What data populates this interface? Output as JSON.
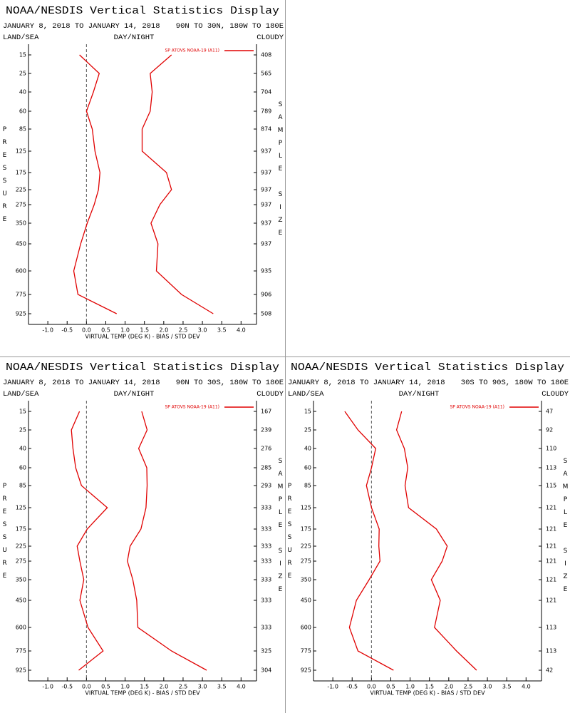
{
  "chart_data": [
    {
      "type": "line",
      "title": "NOAA/NESDIS Vertical Statistics Display",
      "date_range": "JANUARY 8, 2018 TO JANUARY 14, 2018",
      "region": "90N TO 30N, 180W TO 180E",
      "land_sea": "LAND/SEA",
      "day_night": "DAY/NIGHT",
      "cloudy": "CLOUDY",
      "ylabel": "PRESSURE",
      "y2label": "SAMPLE SIZE",
      "xlabel": "VIRTUAL TEMP (DEG K) - BIAS / STD DEV",
      "levels": [
        15,
        25,
        40,
        60,
        85,
        125,
        175,
        225,
        275,
        350,
        450,
        600,
        775,
        925
      ],
      "sample_sizes": [
        408,
        565,
        704,
        789,
        874,
        937,
        937,
        937,
        937,
        937,
        937,
        935,
        906,
        508
      ],
      "series": [
        {
          "name": "SP ATOVS NOAA-19 (A11)",
          "color": "#e00000",
          "bias": [
            -0.18,
            0.33,
            0.18,
            0.0,
            0.15,
            0.22,
            0.35,
            0.31,
            0.2,
            0.02,
            -0.15,
            -0.33,
            -0.22,
            0.78
          ],
          "std_dev": [
            2.2,
            1.65,
            1.7,
            1.65,
            1.44,
            1.44,
            2.07,
            2.2,
            1.9,
            1.67,
            1.85,
            1.81,
            2.46,
            3.28
          ]
        }
      ],
      "xlim": [
        -1.5,
        4.4
      ],
      "xticks": [
        {
          "value": -1,
          "label": "-1.0"
        },
        -0.5,
        {
          "value": 0,
          "label": "0.0"
        },
        0.5,
        {
          "value": 1,
          "label": "1.0"
        },
        1.5,
        {
          "value": 2,
          "label": "2.0"
        },
        2.5,
        {
          "value": 3,
          "label": "3.0"
        },
        3.5,
        {
          "value": 4,
          "label": "4.0"
        }
      ],
      "reference_x": 0
    },
    {
      "type": "line",
      "title": "NOAA/NESDIS Vertical Statistics Display",
      "date_range": "JANUARY 8, 2018 TO JANUARY 14, 2018",
      "region": "90N TO 30S, 180W TO 180E",
      "land_sea": "LAND/SEA",
      "day_night": "DAY/NIGHT",
      "cloudy": "CLOUDY",
      "ylabel": "PRESSURE",
      "y2label": "SAMPLE SIZE",
      "xlabel": "VIRTUAL TEMP (DEG K) - BIAS / STD DEV",
      "levels": [
        15,
        25,
        40,
        60,
        85,
        125,
        175,
        225,
        275,
        350,
        450,
        600,
        775,
        925
      ],
      "sample_sizes": [
        167,
        239,
        276,
        285,
        293,
        333,
        333,
        333,
        333,
        333,
        333,
        333,
        325,
        304
      ],
      "series": [
        {
          "name": "SP ATOVS NOAA-19 (A11)",
          "color": "#e00000",
          "bias": [
            -0.18,
            -0.39,
            -0.35,
            -0.28,
            -0.13,
            0.54,
            0.02,
            -0.24,
            -0.17,
            -0.07,
            -0.17,
            0.04,
            0.43,
            -0.2
          ],
          "std_dev": [
            1.43,
            1.57,
            1.35,
            1.56,
            1.57,
            1.54,
            1.41,
            1.13,
            1.06,
            1.2,
            1.3,
            1.33,
            2.2,
            3.11
          ]
        }
      ],
      "xlim": [
        -1.5,
        4.4
      ],
      "xticks": [
        {
          "value": -1,
          "label": "-1.0"
        },
        -0.5,
        {
          "value": 0,
          "label": "0.0"
        },
        0.5,
        {
          "value": 1,
          "label": "1.0"
        },
        1.5,
        {
          "value": 2,
          "label": "2.0"
        },
        2.5,
        {
          "value": 3,
          "label": "3.0"
        },
        3.5,
        {
          "value": 4,
          "label": "4.0"
        }
      ],
      "reference_x": 0
    },
    {
      "type": "line",
      "title": "NOAA/NESDIS Vertical Statistics Display",
      "date_range": "JANUARY 8, 2018 TO JANUARY 14, 2018",
      "region": "30S TO 90S, 180W TO 180E",
      "land_sea": "LAND/SEA",
      "day_night": "DAY/NIGHT",
      "cloudy": "CLOUDY",
      "ylabel": "PRESSURE",
      "y2label": "SAMPLE SIZE",
      "xlabel": "VIRTUAL TEMP (DEG K) - BIAS / STD DEV",
      "levels": [
        15,
        25,
        40,
        60,
        85,
        125,
        175,
        225,
        275,
        350,
        450,
        600,
        775,
        925
      ],
      "sample_sizes": [
        47,
        92,
        110,
        113,
        115,
        121,
        121,
        121,
        121,
        121,
        121,
        113,
        113,
        42
      ],
      "series": [
        {
          "name": "SP ATOVS NOAA-19 (A11)",
          "color": "#e00000",
          "bias": [
            -0.69,
            -0.35,
            0.11,
            0.0,
            -0.13,
            0.0,
            0.2,
            0.19,
            0.22,
            -0.06,
            -0.39,
            -0.57,
            -0.35,
            0.57
          ],
          "std_dev": [
            0.78,
            0.65,
            0.85,
            0.94,
            0.87,
            0.96,
            1.68,
            1.96,
            1.83,
            1.55,
            1.78,
            1.63,
            2.2,
            2.72
          ]
        }
      ],
      "xlim": [
        -1.5,
        4.4
      ],
      "xticks": [
        {
          "value": -1,
          "label": "-1.0"
        },
        -0.5,
        {
          "value": 0,
          "label": "0.0"
        },
        0.5,
        {
          "value": 1,
          "label": "1.0"
        },
        1.5,
        {
          "value": 2,
          "label": "2.0"
        },
        2.5,
        {
          "value": 3,
          "label": "3.0"
        },
        3.5,
        {
          "value": 4,
          "label": "4.0"
        }
      ],
      "reference_x": 0
    }
  ]
}
